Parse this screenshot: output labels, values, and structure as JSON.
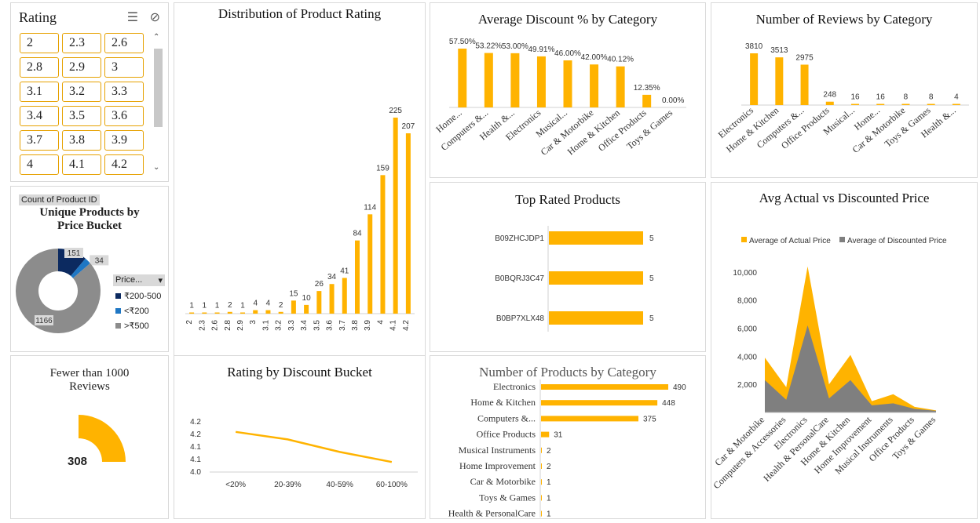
{
  "colors": {
    "accent": "#FFB300",
    "gray": "#7f7f7f",
    "navy": "#0c2a60",
    "blue": "#1f77c4"
  },
  "slicer": {
    "title": "Rating",
    "items": [
      "2",
      "2.3",
      "2.6",
      "2.8",
      "2.9",
      "3",
      "3.1",
      "3.2",
      "3.3",
      "3.4",
      "3.5",
      "3.6",
      "3.7",
      "3.8",
      "3.9",
      "4",
      "4.1",
      "4.2"
    ]
  },
  "donut": {
    "field_button": "Count of Product ID",
    "title_line1": "Unique Products by",
    "title_line2": "Price Bucket",
    "legend_button": "Price...",
    "segments": [
      {
        "label": "₹200-500",
        "value": 151,
        "color": "#0c2a60"
      },
      {
        "label": "<₹200",
        "value": 34,
        "color": "#1f77c4"
      },
      {
        "label": ">₹500",
        "value": 1166,
        "color": "#8c8c8c"
      }
    ]
  },
  "kpi": {
    "title_line1": "Fewer than 1000",
    "title_line2": "Reviews",
    "value": "308"
  },
  "charts": [
    {
      "id": "rating_dist",
      "type": "bar",
      "title": "Distribution of Product Rating",
      "categories": [
        "2",
        "2.3",
        "2.6",
        "2.8",
        "2.9",
        "3",
        "3.1",
        "3.2",
        "3.3",
        "3.4",
        "3.5",
        "3.6",
        "3.7",
        "3.8",
        "3.9",
        "4",
        "4.1",
        "4.2"
      ],
      "values": [
        1,
        1,
        1,
        2,
        1,
        4,
        4,
        2,
        15,
        10,
        26,
        34,
        41,
        84,
        114,
        159,
        225,
        207
      ]
    },
    {
      "id": "avg_discount",
      "type": "bar",
      "title": "Average Discount % by Category",
      "categories": [
        "Home...",
        "Computers &...",
        "Health &...",
        "Electronics",
        "Musical...",
        "Car & Motorbike",
        "Home & Kitchen",
        "Office Products",
        "Toys & Games"
      ],
      "values": [
        57.5,
        53.22,
        53.0,
        49.91,
        46.0,
        42.0,
        40.12,
        12.35,
        0.0
      ],
      "data_labels": [
        "57.50%",
        "53.22%",
        "53.00%",
        "49.91%",
        "46.00%",
        "42.00%",
        "40.12%",
        "12.35%",
        "0.00%"
      ]
    },
    {
      "id": "reviews_by_cat",
      "type": "bar",
      "title": "Number of Reviews by Category",
      "categories": [
        "Electronics",
        "Home & Kitchen",
        "Computers &...",
        "Office Products",
        "Musical...",
        "Home...",
        "Car & Motorbike",
        "Toys & Games",
        "Health &..."
      ],
      "values": [
        3810,
        3513,
        2975,
        248,
        16,
        16,
        8,
        8,
        4
      ]
    },
    {
      "id": "top_rated",
      "type": "bar",
      "orientation": "horizontal",
      "title": "Top Rated Products",
      "categories": [
        "B09ZHCJDP1",
        "B0BQRJ3C47",
        "B0BP7XLX48"
      ],
      "values": [
        5,
        5,
        5
      ]
    },
    {
      "id": "avg_price",
      "type": "area",
      "title": "Avg Actual vs Discounted Price",
      "categories": [
        "Car & Motorbike",
        "Computers & Accessories",
        "Electronics",
        "Health & PersonalCare",
        "Home & Kitchen",
        "Home Improvement",
        "Musical Instruments",
        "Office Products",
        "Toys & Games"
      ],
      "series": [
        {
          "name": "Average of Actual Price",
          "values": [
            3900,
            1800,
            10400,
            2000,
            4100,
            800,
            1300,
            400,
            150
          ],
          "color": "#FFB300"
        },
        {
          "name": "Average of Discounted Price",
          "values": [
            2300,
            900,
            6200,
            1000,
            2300,
            500,
            650,
            250,
            120
          ],
          "color": "#7f7f7f"
        }
      ],
      "y_ticks": [
        "2,000",
        "4,000",
        "6,000",
        "8,000",
        "10,000"
      ],
      "ylim": [
        0,
        11000
      ]
    },
    {
      "id": "rating_discount",
      "type": "line",
      "title": "Rating by Discount Bucket",
      "categories": [
        "<20%",
        "20-39%",
        "40-59%",
        "60-100%"
      ],
      "values": [
        4.16,
        4.13,
        4.08,
        4.04
      ],
      "y_ticks": [
        "4.0",
        "4.1",
        "4.1",
        "4.2",
        "4.2"
      ],
      "ylim": [
        4.0,
        4.2
      ]
    },
    {
      "id": "products_by_cat",
      "type": "bar",
      "orientation": "horizontal",
      "title": "Number of Products by Category",
      "categories": [
        "Electronics",
        "Home & Kitchen",
        "Computers &...",
        "Office Products",
        "Musical Instruments",
        "Home Improvement",
        "Car & Motorbike",
        "Toys & Games",
        "Health & PersonalCare"
      ],
      "values": [
        490,
        448,
        375,
        31,
        2,
        2,
        1,
        1,
        1
      ]
    }
  ]
}
